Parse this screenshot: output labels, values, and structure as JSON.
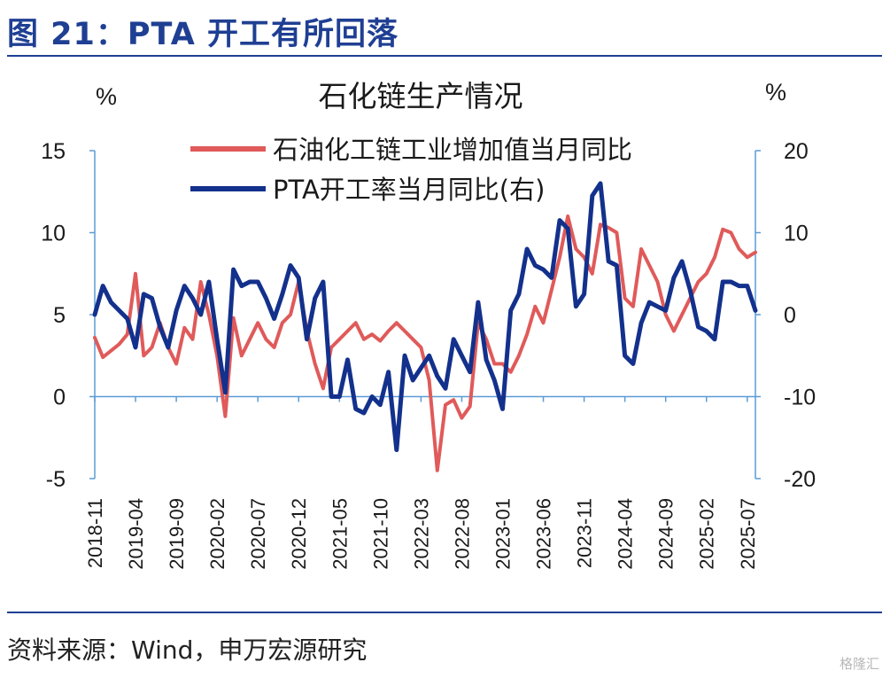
{
  "figure_title": "图 21：PTA 开工有所回落",
  "source_note": "资料来源：Wind，申万宏源研究",
  "watermark": "格隆汇",
  "colors": {
    "brand": "#1f3f93",
    "series_a": "#e05a5a",
    "series_b": "#13318c",
    "axis": "#5b9bd5"
  },
  "chart_data": {
    "type": "line",
    "title": "石化链生产情况",
    "y_left": {
      "unit": "%",
      "ylim": [
        -5,
        15
      ],
      "ticks": [
        15,
        10,
        5,
        0,
        -5
      ]
    },
    "y_right": {
      "unit": "%",
      "ylim": [
        -20,
        20
      ],
      "ticks": [
        20,
        10,
        0,
        -10,
        -20
      ]
    },
    "x_tick_labels": [
      "2018-11",
      "2019-04",
      "2019-09",
      "2020-02",
      "2020-07",
      "2020-12",
      "2021-05",
      "2021-10",
      "2022-03",
      "2022-08",
      "2023-01",
      "2023-06",
      "2023-11",
      "2024-04",
      "2024-09",
      "2025-02",
      "2025-07"
    ],
    "legend_position": "top-center",
    "grid": false,
    "series": [
      {
        "name": "石油化工链工业增加值当月同比",
        "axis": "left",
        "color": "#e05a5a",
        "values": [
          3.6,
          2.4,
          2.8,
          3.2,
          3.8,
          7.5,
          2.5,
          3.0,
          4.5,
          3.0,
          2.0,
          4.2,
          3.5,
          7.0,
          5.0,
          2.5,
          -1.2,
          4.8,
          2.5,
          3.5,
          4.5,
          3.5,
          3.0,
          4.5,
          5.0,
          7.0,
          4.0,
          2.0,
          0.5,
          3.0,
          3.5,
          4.0,
          4.5,
          3.5,
          3.8,
          3.4,
          4.0,
          4.5,
          4.0,
          3.5,
          3.0,
          1.0,
          -4.5,
          -0.5,
          -0.2,
          -1.3,
          -0.6,
          4.5,
          3.5,
          2.0,
          2.0,
          1.5,
          2.5,
          3.8,
          5.5,
          4.5,
          6.5,
          8.5,
          11.0,
          9.0,
          8.5,
          7.5,
          10.5,
          10.3,
          10.0,
          6.0,
          5.5,
          9.0,
          8.0,
          7.0,
          5.0,
          4.0,
          5.0,
          6.0,
          7.0,
          7.5,
          8.5,
          10.2,
          10.0,
          9.0,
          8.5,
          8.8
        ]
      },
      {
        "name": "PTA开工率当月同比(右)",
        "axis": "right",
        "color": "#13318c",
        "values": [
          0,
          3.5,
          1.5,
          0.5,
          -0.5,
          -4.0,
          2.5,
          2.0,
          -1.5,
          -4.0,
          0.5,
          3.5,
          2.0,
          0.0,
          4.0,
          -3.0,
          -9.5,
          5.5,
          3.5,
          4.0,
          4.0,
          2.0,
          -0.5,
          2.5,
          6.0,
          4.5,
          -3.0,
          2.0,
          4.0,
          -10.0,
          -10.0,
          -5.5,
          -11.5,
          -12.0,
          -10.0,
          -11.0,
          -7.0,
          -16.5,
          -5.0,
          -8.0,
          -6.5,
          -5.0,
          -7.5,
          -9.0,
          -3.0,
          -5.0,
          -7.0,
          1.5,
          -5.5,
          -8.0,
          -11.5,
          0.5,
          2.5,
          8.0,
          6.0,
          5.5,
          4.5,
          11.5,
          10.5,
          1.0,
          2.5,
          14.5,
          16.0,
          6.5,
          6.0,
          -5.0,
          -6.0,
          -1.0,
          1.5,
          1.0,
          0.5,
          4.5,
          6.5,
          3.0,
          -1.5,
          -2.0,
          -3.0,
          4.0,
          4.0,
          3.5,
          3.5,
          0.5
        ]
      }
    ]
  }
}
